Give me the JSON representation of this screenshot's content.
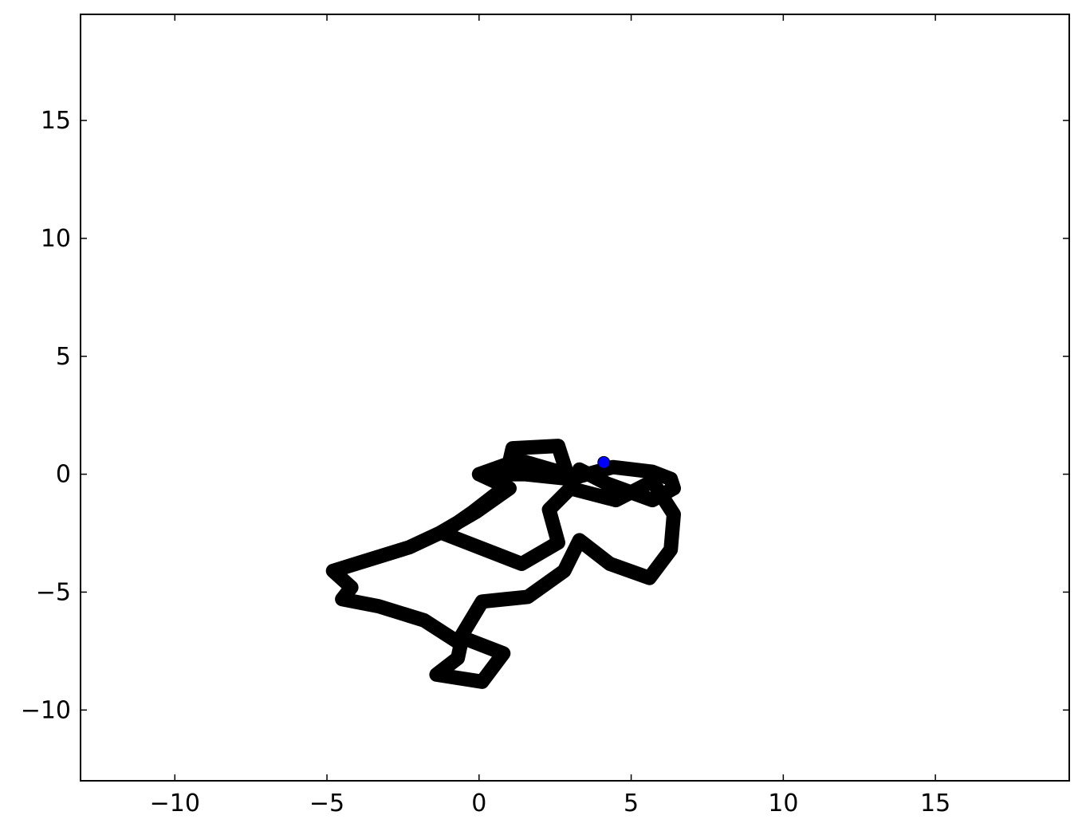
{
  "chart_data": {
    "type": "line",
    "title": "",
    "xlabel": "",
    "ylabel": "",
    "xlim": [
      -13.1,
      19.4
    ],
    "ylim": [
      -13.0,
      19.5
    ],
    "grid": false,
    "legend": "none",
    "x_ticks": [
      -10,
      -5,
      0,
      5,
      10,
      15
    ],
    "y_ticks": [
      -10,
      -5,
      0,
      5,
      10,
      15
    ],
    "x_tick_labels": [
      "−10",
      "−5",
      "0",
      "5",
      "10",
      "15"
    ],
    "y_tick_labels": [
      "−10",
      "−5",
      "0",
      "5",
      "10",
      "15"
    ],
    "series": [
      {
        "color": "#000000",
        "x": [
          0.0,
          1.0,
          -0.1,
          -1.3,
          -2.3,
          -3.8,
          -4.8,
          -4.2,
          -4.5,
          -3.3,
          -1.8,
          -0.6,
          -0.7,
          -1.4,
          0.1,
          0.8,
          -0.6,
          0.1,
          1.6,
          2.8,
          3.3,
          4.3,
          5.6,
          6.3,
          6.4,
          5.7,
          4.5,
          3.0,
          2.3,
          2.6,
          1.4,
          -1.2,
          -0.2,
          0.8,
          1.1,
          2.6,
          2.9,
          1.3,
          0.0,
          1.5,
          3.0,
          4.4,
          5.7,
          6.3,
          6.4,
          5.7,
          4.2,
          3.3
        ],
        "y": [
          0.0,
          -0.6,
          -1.6,
          -2.5,
          -3.1,
          -3.7,
          -4.1,
          -4.8,
          -5.3,
          -5.6,
          -6.2,
          -7.2,
          -7.8,
          -8.5,
          -8.8,
          -7.6,
          -6.9,
          -5.4,
          -5.2,
          -4.1,
          -2.8,
          -3.8,
          -4.4,
          -3.2,
          -1.7,
          -0.3,
          -1.1,
          -0.6,
          -1.5,
          -2.9,
          -3.8,
          -2.5,
          -1.6,
          -0.6,
          1.1,
          1.2,
          0.0,
          0.6,
          0.0,
          0.0,
          -0.2,
          0.3,
          0.1,
          -0.2,
          -0.6,
          -1.1,
          -0.4,
          0.2
        ]
      }
    ],
    "end_marker": {
      "x": 4.1,
      "y": 0.5,
      "color": "#0000ff"
    }
  }
}
